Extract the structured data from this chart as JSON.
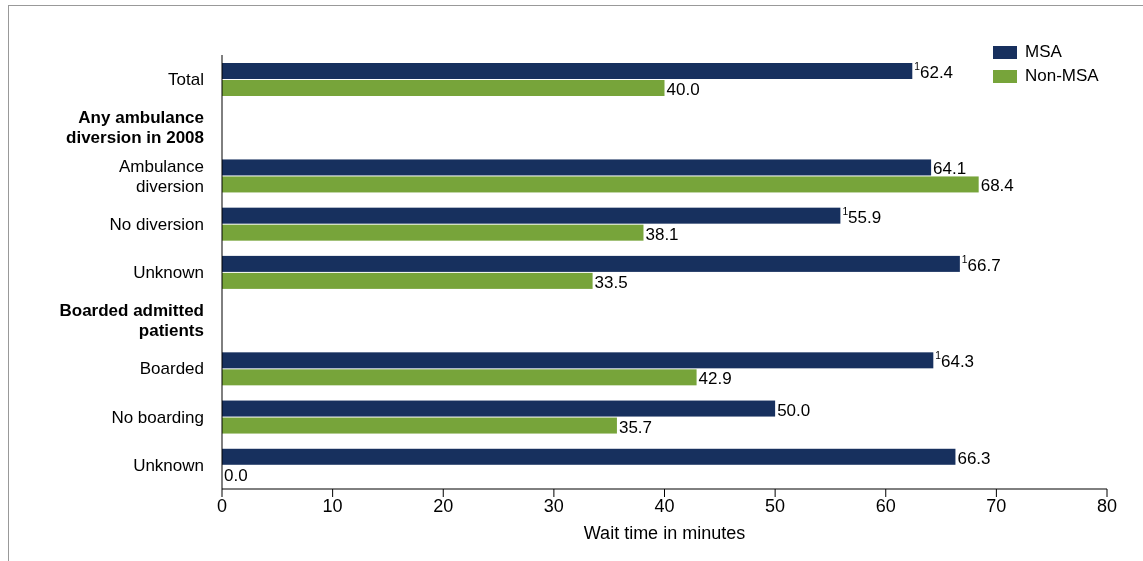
{
  "chart_data": {
    "type": "bar",
    "orientation": "horizontal",
    "xlabel": "Wait time in minutes",
    "categories": [
      "Total",
      "Any ambulance diversion in 2008",
      "Ambulance diversion",
      "No diversion",
      "Unknown",
      "Boarded admitted patients",
      "Boarded",
      "No boarding",
      "Unknown"
    ],
    "series": [
      {
        "name": "MSA",
        "color": "#17305e",
        "values": [
          62.4,
          null,
          64.1,
          55.9,
          66.7,
          null,
          64.3,
          50.0,
          66.3
        ],
        "value_labels": [
          "$^{1}$62.4",
          null,
          "64.1",
          "$^{1}$55.9",
          "$^{1}$66.7",
          null,
          "$^{1}$64.3",
          "50.0",
          "66.3"
        ]
      },
      {
        "name": "Non-MSA",
        "color": "#77a43a",
        "values": [
          40.0,
          null,
          68.4,
          38.1,
          33.5,
          null,
          42.9,
          35.7,
          0.0
        ],
        "value_labels": [
          "40.0",
          null,
          "68.4",
          "38.1",
          "33.5",
          null,
          "42.9",
          "35.7",
          "0.0"
        ]
      }
    ],
    "xlim": [
      0,
      80
    ],
    "xticks": [
      0,
      10,
      20,
      30,
      40,
      50,
      60,
      70,
      80
    ],
    "grid": false,
    "legend": "top right"
  }
}
